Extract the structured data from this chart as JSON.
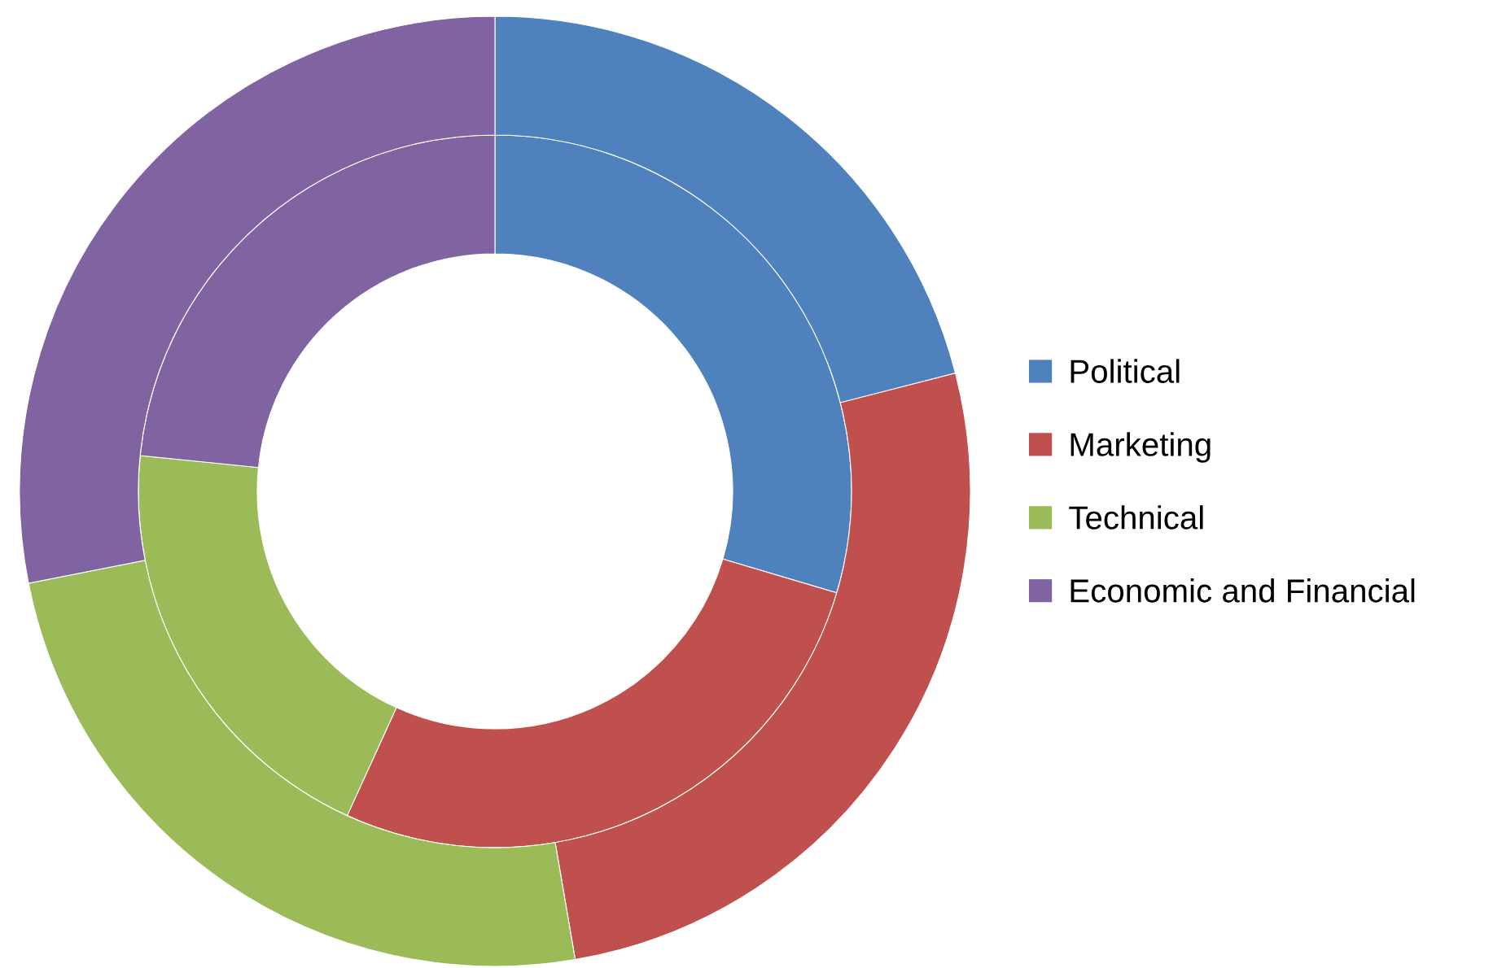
{
  "chart_data": {
    "type": "donut",
    "categories": [
      "Political",
      "Marketing",
      "Technical",
      "Economic and Financial"
    ],
    "colors": [
      "#4f81bd",
      "#c0504d",
      "#9bbb59",
      "#8064a2"
    ],
    "series": [
      {
        "values": [
          29.6,
          27.2,
          19.8,
          23.4
        ]
      },
      {
        "values": [
          21.0,
          26.3,
          24.6,
          28.1
        ]
      }
    ],
    "legend": "right"
  }
}
